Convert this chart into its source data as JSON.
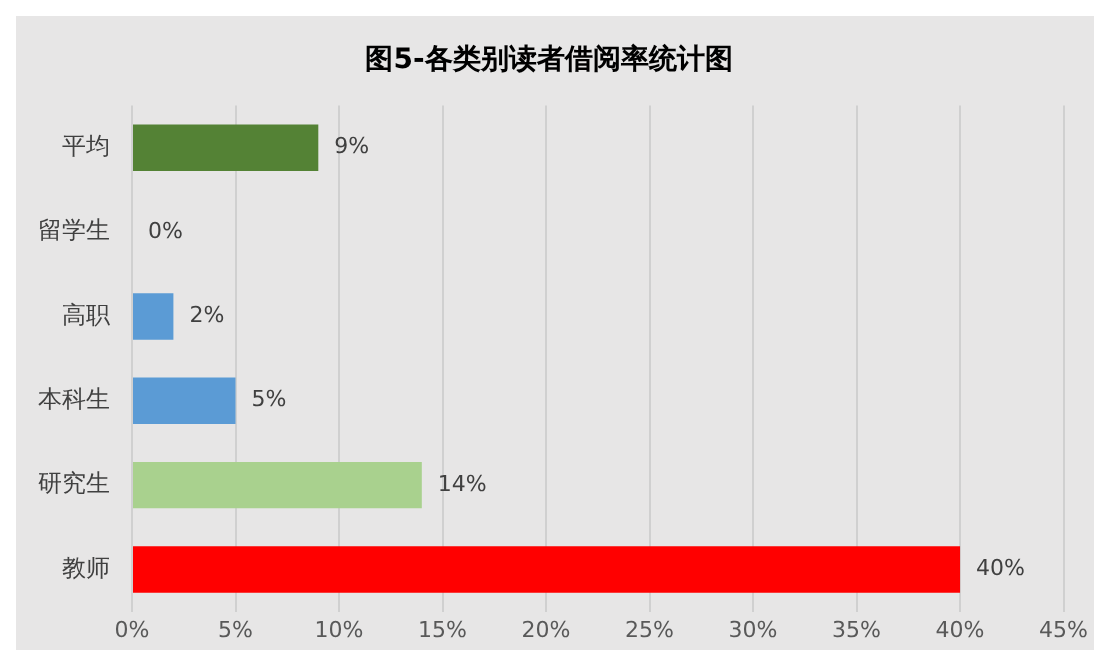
{
  "chart_data": {
    "type": "bar",
    "orientation": "horizontal",
    "title": "图5-各类别读者借阅率统计图",
    "categories": [
      "平均",
      "留学生",
      "高职",
      "本科生",
      "研究生",
      "教师"
    ],
    "values": [
      9,
      0,
      2,
      5,
      14,
      40
    ],
    "colors": [
      "#548235",
      "#5b9bd5",
      "#5b9bd5",
      "#5b9bd5",
      "#a9d18e",
      "#ff0000"
    ],
    "value_labels": [
      "9%",
      "0%",
      "2%",
      "5%",
      "14%",
      "40%"
    ],
    "xlim": [
      0,
      45
    ],
    "xticks": [
      {
        "value": 0,
        "label": "0%"
      },
      {
        "value": 5,
        "label": "5%"
      },
      {
        "value": 10,
        "label": "10%"
      },
      {
        "value": 15,
        "label": "15%"
      },
      {
        "value": 20,
        "label": "20%"
      },
      {
        "value": 25,
        "label": "25%"
      },
      {
        "value": 30,
        "label": "30%"
      },
      {
        "value": 35,
        "label": "35%"
      },
      {
        "value": 40,
        "label": "40%"
      },
      {
        "value": 45,
        "label": "45%"
      }
    ],
    "grid": "x",
    "legend": false
  }
}
